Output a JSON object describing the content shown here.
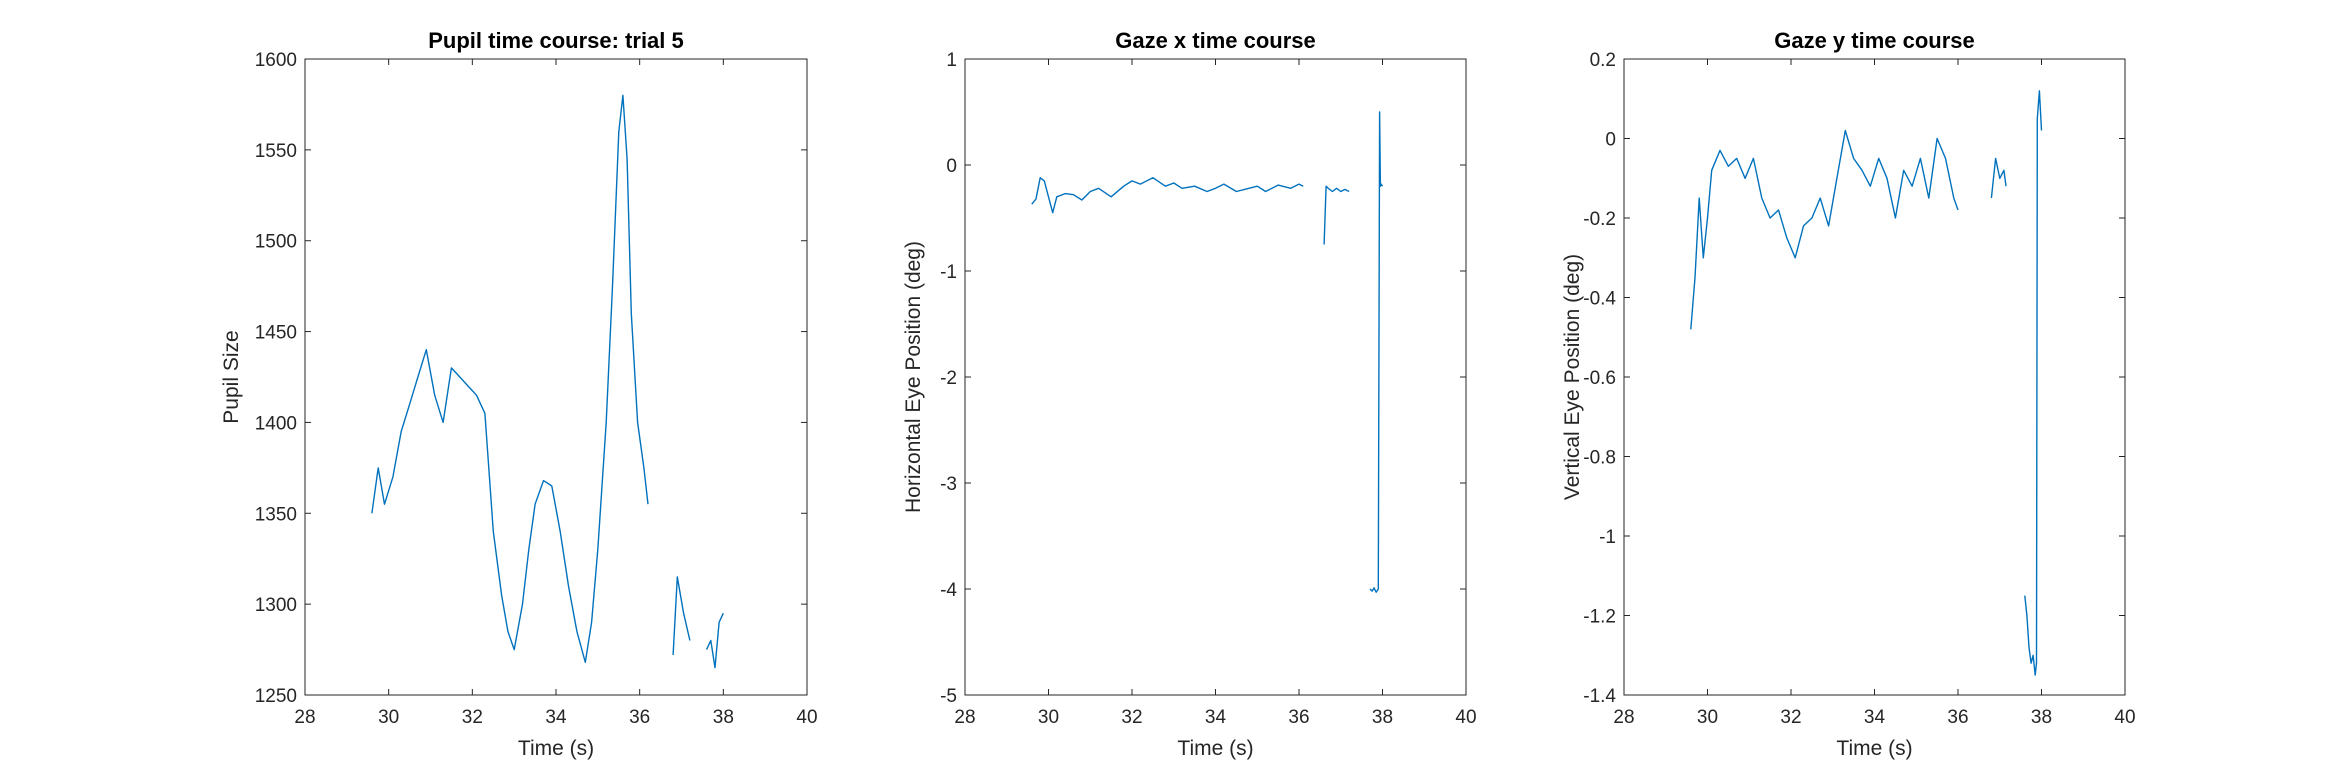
{
  "chart_data": [
    {
      "type": "line",
      "title": "Pupil time course: trial 5",
      "xlabel": "Time (s)",
      "ylabel": "Pupil Size",
      "xlim": [
        28,
        40
      ],
      "ylim": [
        1250,
        1600
      ],
      "xticks": [
        28,
        30,
        32,
        34,
        36,
        38,
        40
      ],
      "yticks": [
        1250,
        1300,
        1350,
        1400,
        1450,
        1500,
        1550,
        1600
      ],
      "xtick_labels": [
        "28",
        "30",
        "32",
        "34",
        "36",
        "38",
        "40"
      ],
      "ytick_labels": [
        "1250",
        "1300",
        "1350",
        "1400",
        "1450",
        "1500",
        "1550",
        "1600"
      ],
      "grid": false,
      "line_color": "#0072BD",
      "segments": [
        {
          "x": [
            29.6,
            29.75,
            29.9,
            30.1,
            30.3,
            30.5,
            30.7,
            30.9,
            31.1,
            31.3,
            31.5,
            31.7,
            31.9,
            32.1,
            32.3,
            32.5,
            32.7,
            32.85,
            33.0,
            33.2,
            33.35,
            33.5,
            33.7,
            33.9,
            34.1,
            34.3,
            34.5,
            34.7,
            34.85,
            35.0,
            35.2,
            35.35,
            35.5,
            35.6,
            35.7,
            35.8,
            35.95,
            36.1,
            36.2
          ],
          "y": [
            1350,
            1375,
            1355,
            1370,
            1395,
            1410,
            1425,
            1440,
            1415,
            1400,
            1430,
            1425,
            1420,
            1415,
            1405,
            1340,
            1305,
            1285,
            1275,
            1300,
            1330,
            1355,
            1368,
            1365,
            1340,
            1310,
            1285,
            1268,
            1290,
            1330,
            1400,
            1475,
            1560,
            1580,
            1545,
            1460,
            1400,
            1375,
            1355
          ]
        },
        {
          "x": [
            36.8,
            36.9,
            37.05,
            37.2
          ],
          "y": [
            1272,
            1315,
            1295,
            1280
          ]
        },
        {
          "x": [
            37.6,
            37.7,
            37.8,
            37.9,
            38.0
          ],
          "y": [
            1275,
            1280,
            1265,
            1290,
            1295
          ]
        }
      ]
    },
    {
      "type": "line",
      "title": "Gaze x time course",
      "xlabel": "Time (s)",
      "ylabel": "Horizontal Eye Position (deg)",
      "xlim": [
        28,
        40
      ],
      "ylim": [
        -5,
        1
      ],
      "xticks": [
        28,
        30,
        32,
        34,
        36,
        38,
        40
      ],
      "yticks": [
        -5,
        -4,
        -3,
        -2,
        -1,
        0,
        1
      ],
      "xtick_labels": [
        "28",
        "30",
        "32",
        "34",
        "36",
        "38",
        "40"
      ],
      "ytick_labels": [
        "-5",
        "-4",
        "-3",
        "-2",
        "-1",
        "0",
        "1"
      ],
      "grid": false,
      "line_color": "#0072BD",
      "segments": [
        {
          "x": [
            29.6,
            29.7,
            29.8,
            29.9,
            30.0,
            30.1,
            30.2,
            30.4,
            30.6,
            30.8,
            31.0,
            31.2,
            31.5,
            31.8,
            32.0,
            32.2,
            32.5,
            32.8,
            33.0,
            33.2,
            33.5,
            33.8,
            34.0,
            34.2,
            34.5,
            34.8,
            35.0,
            35.2,
            35.5,
            35.8,
            36.0,
            36.1
          ],
          "y": [
            -0.37,
            -0.32,
            -0.12,
            -0.15,
            -0.3,
            -0.45,
            -0.3,
            -0.27,
            -0.28,
            -0.33,
            -0.25,
            -0.22,
            -0.3,
            -0.2,
            -0.15,
            -0.18,
            -0.12,
            -0.2,
            -0.17,
            -0.22,
            -0.2,
            -0.25,
            -0.22,
            -0.18,
            -0.25,
            -0.22,
            -0.2,
            -0.25,
            -0.19,
            -0.22,
            -0.18,
            -0.2
          ]
        },
        {
          "x": [
            36.6,
            36.65,
            36.7,
            36.8,
            36.9,
            37.0,
            37.1,
            37.2
          ],
          "y": [
            -0.75,
            -0.2,
            -0.22,
            -0.25,
            -0.22,
            -0.25,
            -0.23,
            -0.25
          ]
        },
        {
          "x": [
            37.7,
            37.75,
            37.8,
            37.85,
            37.9,
            37.93,
            37.95,
            37.97,
            38.0
          ],
          "y": [
            -4.0,
            -4.02,
            -3.99,
            -4.03,
            -4.0,
            0.5,
            -0.2,
            -0.18,
            -0.2
          ]
        }
      ]
    },
    {
      "type": "line",
      "title": "Gaze y time course",
      "xlabel": "Time (s)",
      "ylabel": "Vertical Eye Position (deg)",
      "xlim": [
        28,
        40
      ],
      "ylim": [
        -1.4,
        0.2
      ],
      "xticks": [
        28,
        30,
        32,
        34,
        36,
        38,
        40
      ],
      "yticks": [
        -1.4,
        -1.2,
        -1,
        -0.8,
        -0.6,
        -0.4,
        -0.2,
        0,
        0.2
      ],
      "xtick_labels": [
        "28",
        "30",
        "32",
        "34",
        "36",
        "38",
        "40"
      ],
      "ytick_labels": [
        "-1.4",
        "-1.2",
        "-1",
        "-0.8",
        "-0.6",
        "-0.4",
        "-0.2",
        "0",
        "0.2"
      ],
      "grid": false,
      "line_color": "#0072BD",
      "segments": [
        {
          "x": [
            29.6,
            29.7,
            29.8,
            29.9,
            30.0,
            30.1,
            30.3,
            30.5,
            30.7,
            30.9,
            31.1,
            31.3,
            31.5,
            31.7,
            31.9,
            32.1,
            32.3,
            32.5,
            32.7,
            32.9,
            33.1,
            33.3,
            33.5,
            33.7,
            33.9,
            34.1,
            34.3,
            34.5,
            34.7,
            34.9,
            35.1,
            35.3,
            35.5,
            35.7,
            35.9,
            36.0
          ],
          "y": [
            -0.48,
            -0.35,
            -0.15,
            -0.3,
            -0.2,
            -0.08,
            -0.03,
            -0.07,
            -0.05,
            -0.1,
            -0.05,
            -0.15,
            -0.2,
            -0.18,
            -0.25,
            -0.3,
            -0.22,
            -0.2,
            -0.15,
            -0.22,
            -0.1,
            0.02,
            -0.05,
            -0.08,
            -0.12,
            -0.05,
            -0.1,
            -0.2,
            -0.08,
            -0.12,
            -0.05,
            -0.15,
            0.0,
            -0.05,
            -0.15,
            -0.18
          ]
        },
        {
          "x": [
            36.8,
            36.9,
            37.0,
            37.1,
            37.15
          ],
          "y": [
            -0.15,
            -0.05,
            -0.1,
            -0.08,
            -0.12
          ]
        },
        {
          "x": [
            37.6,
            37.65,
            37.7,
            37.75,
            37.8,
            37.85,
            37.88,
            37.9,
            37.95,
            38.0
          ],
          "y": [
            -1.15,
            -1.2,
            -1.28,
            -1.32,
            -1.3,
            -1.35,
            -1.32,
            0.05,
            0.12,
            0.02
          ]
        }
      ]
    }
  ]
}
